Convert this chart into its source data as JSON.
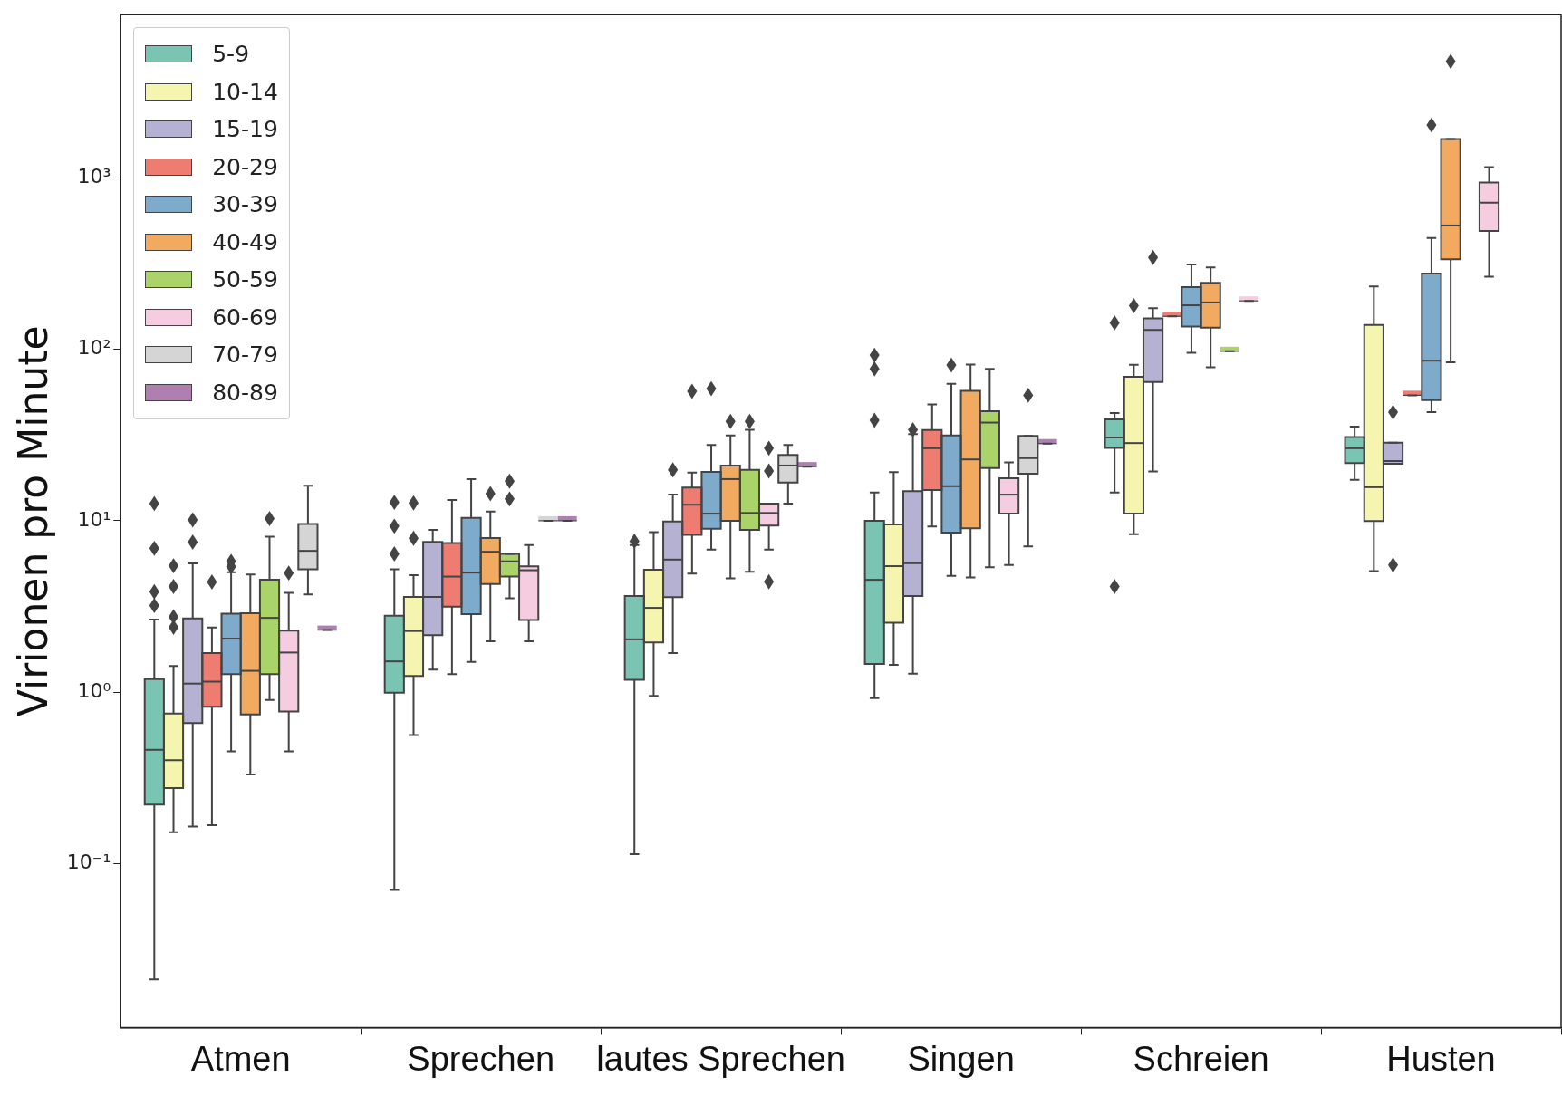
{
  "chart_data": {
    "type": "box",
    "ylabel": "Virionen pro Minute",
    "categories": [
      "Atmen",
      "Sprechen",
      "lautes Sprechen",
      "Singen",
      "Schreien",
      "Husten"
    ],
    "log": "y",
    "ylim": [
      0.011,
      9000
    ],
    "yticks": [
      {
        "value": 0.1,
        "label": "10⁻¹"
      },
      {
        "value": 1,
        "label": "10⁰"
      },
      {
        "value": 10,
        "label": "10¹"
      },
      {
        "value": 100,
        "label": "10²"
      },
      {
        "value": 1000,
        "label": "10³"
      }
    ],
    "legend": "top left",
    "marker": "diamond",
    "series": [
      {
        "name": "5-9",
        "color": "#79c4b3",
        "boxes": [
          {
            "low": 0.021,
            "q1": 0.22,
            "median": 0.46,
            "q3": 1.19,
            "high": 2.65,
            "outliers": [
              3.2,
              3.85,
              6.9,
              12.6
            ]
          },
          {
            "low": 0.07,
            "q1": 0.99,
            "median": 1.51,
            "q3": 2.79,
            "high": 5.2,
            "outliers": [
              6.4,
              9.3,
              12.8
            ]
          },
          {
            "low": 0.113,
            "q1": 1.18,
            "median": 2.03,
            "q3": 3.64,
            "high": 7.2,
            "outliers": [
              7.6
            ]
          },
          {
            "low": 0.92,
            "q1": 1.46,
            "median": 4.52,
            "q3": 10,
            "high": 14.6,
            "outliers": [
              38.6,
              77,
              92.6
            ]
          },
          {
            "low": 14.6,
            "q1": 26.6,
            "median": 30.6,
            "q3": 39,
            "high": 42.5,
            "outliers": [
              4.13,
              143
            ]
          },
          {
            "low": 17.3,
            "q1": 21.7,
            "median": 26.5,
            "q3": 30.8,
            "high": 35.4
          }
        ]
      },
      {
        "name": "10-14",
        "color": "#f5f5b0",
        "boxes": [
          {
            "low": 0.152,
            "q1": 0.275,
            "median": 0.4,
            "q3": 0.75,
            "high": 1.42,
            "outliers": [
              2.39,
              2.75,
              4.13,
              5.46
            ]
          },
          {
            "low": 0.56,
            "q1": 1.24,
            "median": 2.27,
            "q3": 3.59,
            "high": 4.81,
            "outliers": [
              7.9,
              12.7
            ]
          },
          {
            "low": 0.95,
            "q1": 1.95,
            "median": 3.1,
            "q3": 5.18,
            "high": 8.58
          },
          {
            "low": 1.44,
            "q1": 2.54,
            "median": 5.43,
            "q3": 9.5,
            "high": 19.2
          },
          {
            "low": 8.35,
            "q1": 11,
            "median": 28.4,
            "q3": 69.2,
            "high": 81.4,
            "outliers": [
              180
            ]
          },
          {
            "low": 5.08,
            "q1": 9.95,
            "median": 15.7,
            "q3": 139,
            "high": 233
          }
        ]
      },
      {
        "name": "15-19",
        "color": "#b5b1d2",
        "boxes": [
          {
            "low": 0.164,
            "q1": 0.66,
            "median": 1.12,
            "q3": 2.69,
            "high": 5.64,
            "outliers": [
              7.5,
              10.1
            ]
          },
          {
            "low": 1.35,
            "q1": 2.15,
            "median": 3.59,
            "q3": 7.52,
            "high": 8.84
          },
          {
            "low": 1.69,
            "q1": 3.58,
            "median": 5.93,
            "q3": 9.91,
            "high": 14.2,
            "outliers": [
              19.8
            ]
          },
          {
            "low": 1.28,
            "q1": 3.63,
            "median": 5.65,
            "q3": 14.9,
            "high": 32,
            "outliers": [
              34
            ]
          },
          {
            "low": 19.4,
            "q1": 64.5,
            "median": 130,
            "q3": 152,
            "high": 174,
            "outliers": [
              344
            ]
          },
          {
            "low": 21.5,
            "q1": 21.5,
            "median": 22.3,
            "q3": 28.5,
            "high": 28.5,
            "outliers": [
              5.52,
              43
            ]
          }
        ]
      },
      {
        "name": "20-29",
        "color": "#ee7c70",
        "boxes": [
          {
            "low": 0.167,
            "q1": 0.82,
            "median": 1.15,
            "q3": 1.69,
            "high": 2.38,
            "outliers": [
              4.39
            ]
          },
          {
            "low": 1.27,
            "q1": 3.15,
            "median": 4.72,
            "q3": 7.42,
            "high": 13.2
          },
          {
            "low": 4.92,
            "q1": 8.28,
            "median": 12.4,
            "q3": 15.6,
            "high": 19.1,
            "outliers": [
              57
            ]
          },
          {
            "low": 9.25,
            "q1": 15.1,
            "median": 26.5,
            "q3": 33.8,
            "high": 47.7
          },
          {
            "low": 156,
            "q1": 156,
            "median": 156,
            "q3": 156,
            "high": 156
          },
          {
            "low": 54,
            "q1": 54,
            "median": 54,
            "q3": 54,
            "high": 54
          }
        ]
      },
      {
        "name": "30-39",
        "color": "#7eaacb",
        "boxes": [
          {
            "low": 0.45,
            "q1": 1.27,
            "median": 2.05,
            "q3": 2.87,
            "high": 5,
            "outliers": [
              5.4,
              5.8
            ]
          },
          {
            "low": 1.5,
            "q1": 2.85,
            "median": 4.98,
            "q3": 10.4,
            "high": 17.5
          },
          {
            "low": 6.79,
            "q1": 8.97,
            "median": 11,
            "q3": 19.3,
            "high": 27.7,
            "outliers": [
              59
            ]
          },
          {
            "low": 4.77,
            "q1": 8.53,
            "median": 15.9,
            "q3": 31.5,
            "high": 62.9,
            "outliers": [
              81
            ]
          },
          {
            "low": 95.5,
            "q1": 136,
            "median": 181,
            "q3": 231,
            "high": 313
          },
          {
            "low": 43,
            "q1": 50.6,
            "median": 86,
            "q3": 277,
            "high": 447,
            "outliers": [
              2040
            ]
          }
        ]
      },
      {
        "name": "40-49",
        "color": "#f1aa60",
        "boxes": [
          {
            "low": 0.33,
            "q1": 0.74,
            "median": 1.33,
            "q3": 2.88,
            "high": 4.86
          },
          {
            "low": 1.98,
            "q1": 4.27,
            "median": 6.59,
            "q3": 7.92,
            "high": 11.3,
            "outliers": [
              14.4
            ]
          },
          {
            "low": 4.61,
            "q1": 10,
            "median": 17.5,
            "q3": 21,
            "high": 31.5,
            "outliers": [
              38
            ]
          },
          {
            "low": 4.67,
            "q1": 9.03,
            "median": 22.8,
            "q3": 57.3,
            "high": 81.6
          },
          {
            "low": 78.7,
            "q1": 134,
            "median": 188,
            "q3": 245,
            "high": 301
          },
          {
            "low": 84,
            "q1": 336,
            "median": 529,
            "q3": 1690,
            "high": 1690,
            "outliers": [
              4800
            ]
          }
        ]
      },
      {
        "name": "50-59",
        "color": "#aad36a",
        "boxes": [
          {
            "low": 0.9,
            "q1": 1.27,
            "median": 2.71,
            "q3": 4.53,
            "high": 8.08,
            "outliers": [
              10.3
            ]
          },
          {
            "low": 3.53,
            "q1": 4.72,
            "median": 5.79,
            "q3": 6.4,
            "high": 6.4,
            "outliers": [
              13.4,
              17
            ]
          },
          {
            "low": 5.04,
            "q1": 8.85,
            "median": 11.1,
            "q3": 19.8,
            "high": 34,
            "outliers": [
              38
            ]
          },
          {
            "low": 5.35,
            "q1": 20.3,
            "median": 37.4,
            "q3": 43.6,
            "high": 77.1
          },
          {
            "low": 97.5,
            "q1": 97.5,
            "median": 97.5,
            "q3": 97.5,
            "high": 97.5
          },
          null
        ]
      },
      {
        "name": "60-69",
        "color": "#f5cce0",
        "boxes": [
          {
            "low": 0.45,
            "q1": 0.77,
            "median": 1.7,
            "q3": 2.28,
            "high": 3.79,
            "outliers": [
              4.95
            ]
          },
          {
            "low": 1.98,
            "q1": 2.63,
            "median": 5.14,
            "q3": 5.42,
            "high": 7.2
          },
          {
            "low": 6.79,
            "q1": 9.38,
            "median": 11.1,
            "q3": 12.6,
            "high": 12.6,
            "outliers": [
              4.4,
              19.5,
              26.5
            ]
          },
          {
            "low": 5.51,
            "q1": 11,
            "median": 14.2,
            "q3": 17.7,
            "high": 21.9
          },
          {
            "low": 192,
            "q1": 192,
            "median": 192,
            "q3": 192,
            "high": 192
          },
          {
            "low": 266,
            "q1": 491,
            "median": 719,
            "q3": 942,
            "high": 1161
          }
        ]
      },
      {
        "name": "70-79",
        "color": "#d5d5d5",
        "boxes": [
          {
            "low": 3.71,
            "q1": 5.21,
            "median": 6.67,
            "q3": 9.56,
            "high": 16
          },
          {
            "low": 10,
            "q1": 10,
            "median": 10,
            "q3": 10,
            "high": 10
          },
          {
            "low": 12.6,
            "q1": 16.7,
            "median": 21,
            "q3": 24.2,
            "high": 27.7
          },
          {
            "low": 7.08,
            "q1": 18.8,
            "median": 23.2,
            "q3": 31.3,
            "high": 31.3,
            "outliers": [
              54
            ]
          },
          null,
          null
        ]
      },
      {
        "name": "80-89",
        "color": "#ae7fb0",
        "boxes": [
          {
            "low": 2.3,
            "q1": 2.3,
            "median": 2.3,
            "q3": 2.3,
            "high": 2.3
          },
          {
            "low": 10,
            "q1": 10,
            "median": 10,
            "q3": 10,
            "high": 10
          },
          {
            "low": 20.7,
            "q1": 20.7,
            "median": 20.7,
            "q3": 20.7,
            "high": 20.7
          },
          {
            "low": 28.2,
            "q1": 28.2,
            "median": 28.2,
            "q3": 28.2,
            "high": 28.2
          },
          null,
          null
        ]
      }
    ]
  }
}
